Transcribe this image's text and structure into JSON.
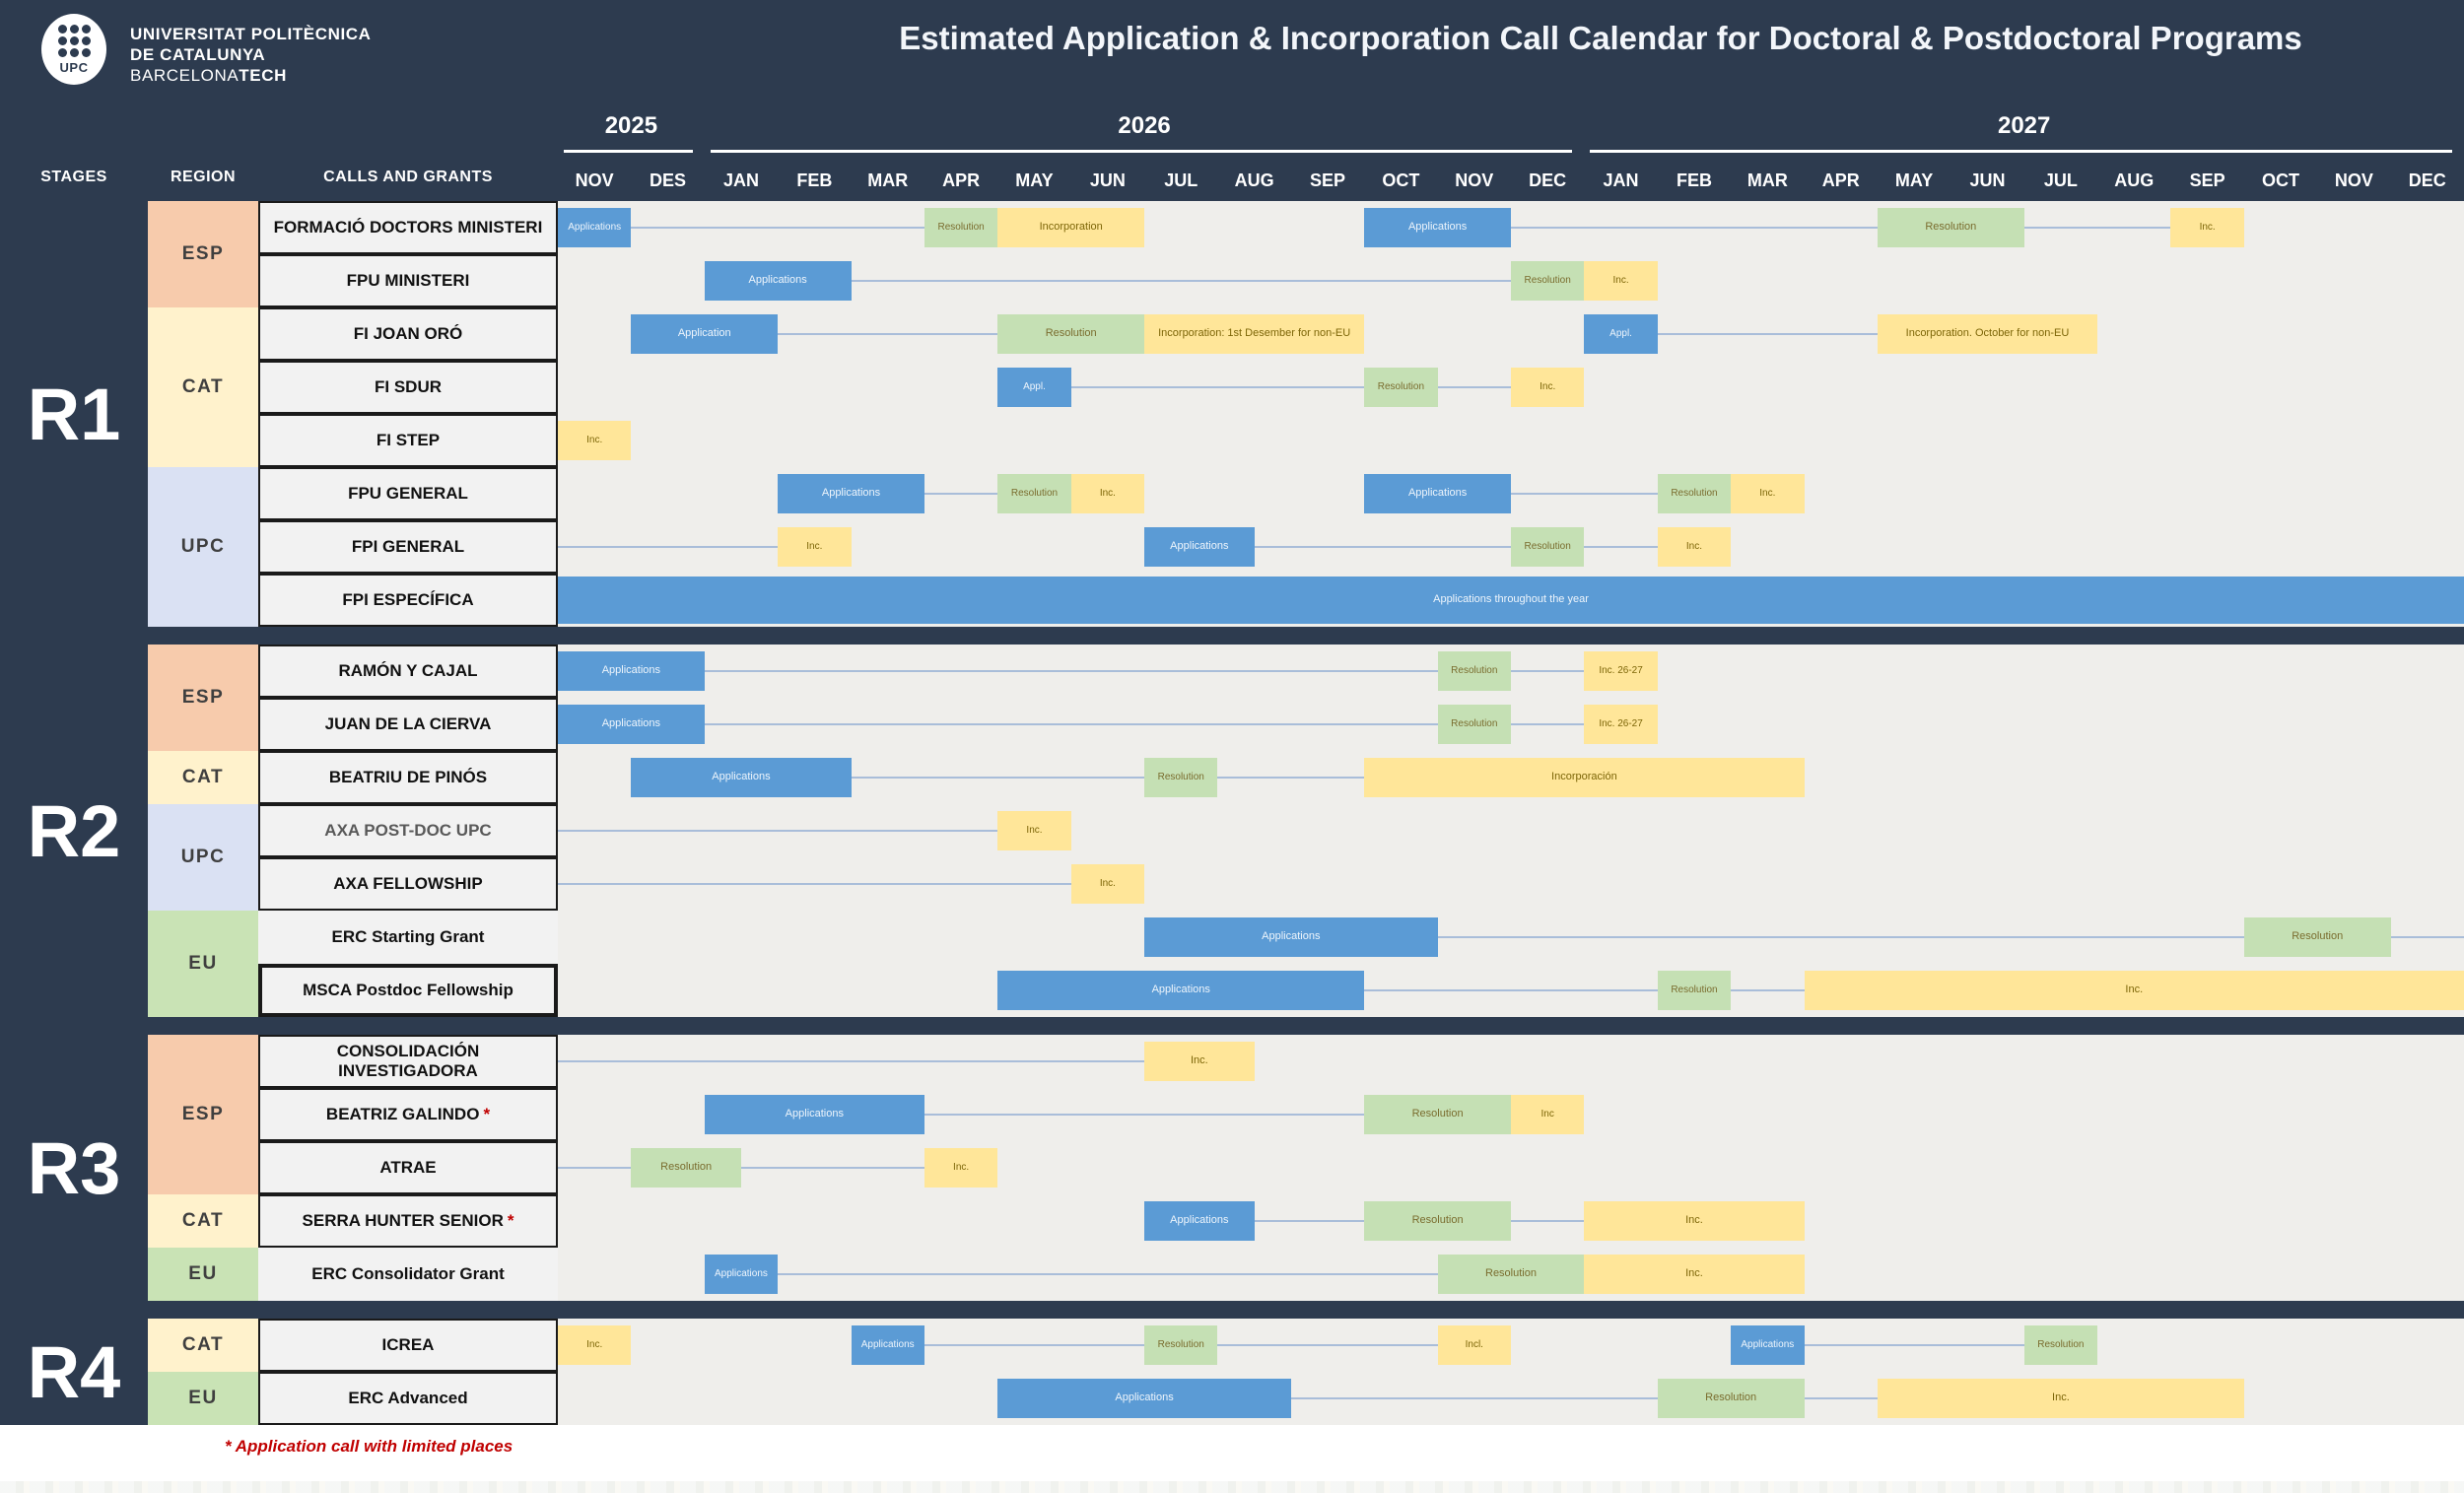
{
  "header": {
    "title": "Estimated Application & Incorporation Call Calendar for Doctoral & Postdoctoral Programs",
    "org_line1": "UNIVERSITAT POLITÈCNICA",
    "org_line2": "DE CATALUNYA",
    "org_line3_normal": "BARCELONA",
    "org_line3_bold": "TECH",
    "logo_acronym": "UPC",
    "columns": {
      "stages": "STAGES",
      "region": "REGION",
      "calls": "CALLS AND GRANTS"
    }
  },
  "footer": {
    "note": "* Application call with limited places"
  },
  "colors": {
    "background": "#2d3b4f",
    "section_bg": "#efeeeb",
    "label_box_bg": "#f2f2f2",
    "label_box_border": "#1a1a1a",
    "application": "#5b9bd5",
    "resolution": "#c5e0b4",
    "incorporation": "#ffe699",
    "connector": "#a9bdd9",
    "note": "#c00000",
    "region": {
      "esp": "#f7cbac",
      "cat": "#fff2cc",
      "upc": "#dae1f3",
      "eu": "#c9e3b5"
    }
  },
  "calendar": {
    "years": [
      {
        "label": "2025",
        "start": 0,
        "end": 2
      },
      {
        "label": "2026",
        "start": 2,
        "end": 14
      },
      {
        "label": "2027",
        "start": 14,
        "end": 26
      }
    ],
    "months": [
      "NOV",
      "DES",
      "JAN",
      "FEB",
      "MAR",
      "APR",
      "MAY",
      "JUN",
      "JUL",
      "AUG",
      "SEP",
      "OCT",
      "NOV",
      "DEC",
      "JAN",
      "FEB",
      "MAR",
      "APR",
      "MAY",
      "JUN",
      "JUL",
      "AUG",
      "SEP",
      "OCT",
      "NOV",
      "DEC"
    ]
  },
  "chart_data": {
    "type": "gantt",
    "title": "Estimated Application & Incorporation Call Calendar for Doctoral & Postdoctoral Programs",
    "unit": "month column index; 0 = NOV 2025, 2 = JAN 2026, 14 = JAN 2027, 26 = end DEC 2027",
    "bar_kinds": {
      "app": "Application period (blue)",
      "res": "Resolution (green)",
      "inc": "Incorporation (yellow)"
    },
    "sections": [
      {
        "stage": "R1",
        "regions": [
          {
            "label": "ESP",
            "key": "esp",
            "rows": 2
          },
          {
            "label": "CAT",
            "key": "cat",
            "rows": 3
          },
          {
            "label": "UPC",
            "key": "upc",
            "rows": 3
          }
        ],
        "rows": [
          {
            "label": "FORMACIÓ DOCTORS MINISTERI",
            "bars": [
              {
                "k": "app",
                "t": "Applications",
                "s": 0,
                "e": 1
              },
              {
                "k": "res",
                "t": "Resolution",
                "s": 5,
                "e": 6
              },
              {
                "k": "inc",
                "t": "Incorporation",
                "s": 6,
                "e": 8
              },
              {
                "k": "app",
                "t": "Applications",
                "s": 11,
                "e": 13
              },
              {
                "k": "res",
                "t": "Resolution",
                "s": 18,
                "e": 20
              },
              {
                "k": "inc",
                "t": "Inc.",
                "s": 22,
                "e": 23
              }
            ],
            "lines": [
              [
                1,
                5
              ],
              [
                13,
                18
              ],
              [
                20,
                22
              ]
            ]
          },
          {
            "label": "FPU MINISTERI",
            "bars": [
              {
                "k": "app",
                "t": "Applications",
                "s": 2,
                "e": 4
              },
              {
                "k": "res",
                "t": "Resolution",
                "s": 13,
                "e": 14
              },
              {
                "k": "inc",
                "t": "Inc.",
                "s": 14,
                "e": 15
              }
            ],
            "lines": [
              [
                4,
                13
              ]
            ]
          },
          {
            "label": "FI JOAN ORÓ",
            "bars": [
              {
                "k": "app",
                "t": "Application",
                "s": 1,
                "e": 3
              },
              {
                "k": "res",
                "t": "Resolution",
                "s": 6,
                "e": 8
              },
              {
                "k": "inc",
                "t": "Incorporation: 1st Desember for non-EU",
                "s": 8,
                "e": 11
              },
              {
                "k": "app",
                "t": "Appl.",
                "s": 14,
                "e": 15
              },
              {
                "k": "inc",
                "t": "Incorporation. October for non-EU",
                "s": 18,
                "e": 21
              }
            ],
            "lines": [
              [
                3,
                6
              ],
              [
                15,
                18
              ]
            ]
          },
          {
            "label": "FI SDUR",
            "bars": [
              {
                "k": "app",
                "t": "Appl.",
                "s": 6,
                "e": 7
              },
              {
                "k": "res",
                "t": "Resolution",
                "s": 11,
                "e": 12
              },
              {
                "k": "inc",
                "t": "Inc.",
                "s": 13,
                "e": 14
              }
            ],
            "lines": [
              [
                7,
                11
              ],
              [
                12,
                13
              ]
            ]
          },
          {
            "label": "FI STEP",
            "bars": [
              {
                "k": "inc",
                "t": "Inc.",
                "s": 0,
                "e": 1
              }
            ],
            "lines": []
          },
          {
            "label": "FPU GENERAL",
            "bars": [
              {
                "k": "app",
                "t": "Applications",
                "s": 3,
                "e": 5
              },
              {
                "k": "res",
                "t": "Resolution",
                "s": 6,
                "e": 7
              },
              {
                "k": "inc",
                "t": "Inc.",
                "s": 7,
                "e": 8
              },
              {
                "k": "app",
                "t": "Applications",
                "s": 11,
                "e": 13
              },
              {
                "k": "res",
                "t": "Resolution",
                "s": 15,
                "e": 16
              },
              {
                "k": "inc",
                "t": "Inc.",
                "s": 16,
                "e": 17
              }
            ],
            "lines": [
              [
                5,
                6
              ],
              [
                13,
                15
              ]
            ]
          },
          {
            "label": "FPI GENERAL",
            "bars": [
              {
                "k": "inc",
                "t": "Inc.",
                "s": 3,
                "e": 4
              },
              {
                "k": "app",
                "t": "Applications",
                "s": 8,
                "e": 9.5
              },
              {
                "k": "res",
                "t": "Resolution",
                "s": 13,
                "e": 14
              },
              {
                "k": "inc",
                "t": "Inc.",
                "s": 15,
                "e": 16
              }
            ],
            "lines": [
              [
                0,
                3
              ],
              [
                9.5,
                13
              ],
              [
                14,
                15
              ]
            ]
          },
          {
            "label": "FPI ESPECÍFICA",
            "bars": [
              {
                "k": "app",
                "t": "Applications throughout the year",
                "s": 0,
                "e": 26,
                "full": true
              }
            ],
            "lines": []
          }
        ]
      },
      {
        "stage": "R2",
        "regions": [
          {
            "label": "ESP",
            "key": "esp",
            "rows": 2
          },
          {
            "label": "CAT",
            "key": "cat",
            "rows": 1
          },
          {
            "label": "UPC",
            "key": "upc",
            "rows": 2
          },
          {
            "label": "EU",
            "key": "eu",
            "rows": 2
          }
        ],
        "rows": [
          {
            "label": "RAMÓN Y CAJAL",
            "bars": [
              {
                "k": "app",
                "t": "Applications",
                "s": 0,
                "e": 2
              },
              {
                "k": "res",
                "t": "Resolution",
                "s": 12,
                "e": 13
              },
              {
                "k": "inc",
                "t": "Inc. 26-27",
                "s": 14,
                "e": 15
              }
            ],
            "lines": [
              [
                2,
                12
              ],
              [
                13,
                14
              ]
            ]
          },
          {
            "label": "JUAN DE LA CIERVA",
            "bars": [
              {
                "k": "app",
                "t": "Applications",
                "s": 0,
                "e": 2
              },
              {
                "k": "res",
                "t": "Resolution",
                "s": 12,
                "e": 13
              },
              {
                "k": "inc",
                "t": "Inc. 26-27",
                "s": 14,
                "e": 15
              }
            ],
            "lines": [
              [
                2,
                12
              ],
              [
                13,
                14
              ]
            ]
          },
          {
            "label": "BEATRIU DE PINÓS",
            "bars": [
              {
                "k": "app",
                "t": "Applications",
                "s": 1,
                "e": 4
              },
              {
                "k": "res",
                "t": "Resolution",
                "s": 8,
                "e": 9
              },
              {
                "k": "inc",
                "t": "Incorporación",
                "s": 11,
                "e": 17
              }
            ],
            "lines": [
              [
                4,
                8
              ],
              [
                9,
                11
              ]
            ]
          },
          {
            "label": "AXA POST-DOC UPC",
            "muted": true,
            "bars": [
              {
                "k": "inc",
                "t": "Inc.",
                "s": 6,
                "e": 7
              }
            ],
            "lines": [
              [
                0,
                6
              ]
            ]
          },
          {
            "label": "AXA FELLOWSHIP",
            "bars": [
              {
                "k": "inc",
                "t": "Inc.",
                "s": 7,
                "e": 8
              }
            ],
            "lines": [
              [
                0,
                7
              ]
            ]
          },
          {
            "label": "ERC Starting Grant",
            "box": "plain",
            "bars": [
              {
                "k": "app",
                "t": "Applications",
                "s": 8,
                "e": 12
              },
              {
                "k": "res",
                "t": "Resolution",
                "s": 23,
                "e": 25
              }
            ],
            "lines": [
              [
                12,
                23
              ],
              [
                25,
                26
              ]
            ]
          },
          {
            "label": "MSCA Postdoc Fellowship",
            "box": "bold",
            "bars": [
              {
                "k": "app",
                "t": "Applications",
                "s": 6,
                "e": 11
              },
              {
                "k": "res",
                "t": "Resolution",
                "s": 15,
                "e": 16
              },
              {
                "k": "inc",
                "t": "Inc.",
                "s": 17,
                "e": 26
              }
            ],
            "lines": [
              [
                11,
                15
              ],
              [
                16,
                17
              ]
            ]
          }
        ]
      },
      {
        "stage": "R3",
        "regions": [
          {
            "label": "ESP",
            "key": "esp",
            "rows": 3
          },
          {
            "label": "CAT",
            "key": "cat",
            "rows": 1
          },
          {
            "label": "EU",
            "key": "eu",
            "rows": 1
          }
        ],
        "rows": [
          {
            "label": "CONSOLIDACIÓN INVESTIGADORA",
            "bars": [
              {
                "k": "inc",
                "t": "Inc.",
                "s": 8,
                "e": 9.5
              }
            ],
            "lines": [
              [
                0,
                8
              ]
            ]
          },
          {
            "label": "BEATRIZ GALINDO",
            "star": "*",
            "bars": [
              {
                "k": "app",
                "t": "Applications",
                "s": 2,
                "e": 5
              },
              {
                "k": "res",
                "t": "Resolution",
                "s": 11,
                "e": 13
              },
              {
                "k": "inc",
                "t": "Inc",
                "s": 13,
                "e": 14
              }
            ],
            "lines": [
              [
                5,
                11
              ]
            ]
          },
          {
            "label": "ATRAE",
            "bars": [
              {
                "k": "res",
                "t": "Resolution",
                "s": 1,
                "e": 2.5
              },
              {
                "k": "inc",
                "t": "Inc.",
                "s": 5,
                "e": 6
              }
            ],
            "lines": [
              [
                0,
                1
              ],
              [
                2.5,
                5
              ]
            ]
          },
          {
            "label": "SERRA HUNTER SENIOR",
            "star": "*",
            "bars": [
              {
                "k": "app",
                "t": "Applications",
                "s": 8,
                "e": 9.5
              },
              {
                "k": "res",
                "t": "Resolution",
                "s": 11,
                "e": 13
              },
              {
                "k": "inc",
                "t": "Inc.",
                "s": 14,
                "e": 17
              }
            ],
            "lines": [
              [
                9.5,
                11
              ],
              [
                13,
                14
              ]
            ]
          },
          {
            "label": "ERC Consolidator Grant",
            "box": "plain",
            "bars": [
              {
                "k": "app",
                "t": "Applications",
                "s": 2,
                "e": 3
              },
              {
                "k": "res",
                "t": "Resolution",
                "s": 12,
                "e": 14
              },
              {
                "k": "inc",
                "t": "Inc.",
                "s": 14,
                "e": 17
              }
            ],
            "lines": [
              [
                3,
                12
              ]
            ]
          }
        ]
      },
      {
        "stage": "R4",
        "regions": [
          {
            "label": "CAT",
            "key": "cat",
            "rows": 1
          },
          {
            "label": "EU",
            "key": "eu",
            "rows": 1
          }
        ],
        "rows": [
          {
            "label": "ICREA",
            "bars": [
              {
                "k": "inc",
                "t": "Inc.",
                "s": 0,
                "e": 1
              },
              {
                "k": "app",
                "t": "Applications",
                "s": 4,
                "e": 5
              },
              {
                "k": "res",
                "t": "Resolution",
                "s": 8,
                "e": 9
              },
              {
                "k": "inc",
                "t": "Incl.",
                "s": 12,
                "e": 13
              },
              {
                "k": "app",
                "t": "Applications",
                "s": 16,
                "e": 17
              },
              {
                "k": "res",
                "t": "Resolution",
                "s": 20,
                "e": 21
              }
            ],
            "lines": [
              [
                5,
                8
              ],
              [
                9,
                12
              ],
              [
                17,
                20
              ]
            ]
          },
          {
            "label": "ERC Advanced",
            "bars": [
              {
                "k": "app",
                "t": "Applications",
                "s": 6,
                "e": 10
              },
              {
                "k": "res",
                "t": "Resolution",
                "s": 15,
                "e": 17
              },
              {
                "k": "inc",
                "t": "Inc.",
                "s": 18,
                "e": 23
              }
            ],
            "lines": [
              [
                10,
                15
              ],
              [
                17,
                18
              ]
            ]
          }
        ]
      }
    ]
  }
}
